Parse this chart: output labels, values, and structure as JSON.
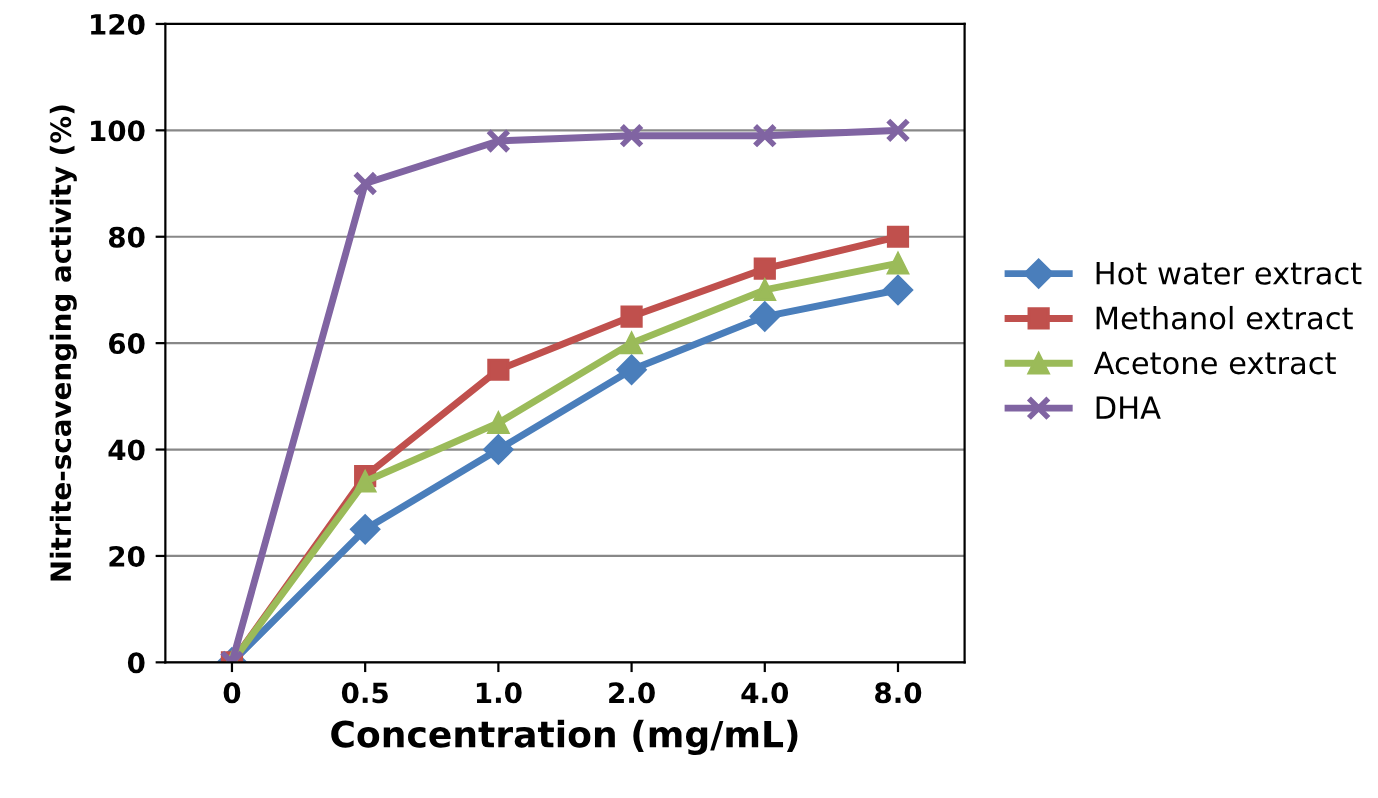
{
  "chart_data": {
    "type": "line",
    "xlabel": "Concentration (mg/mL)",
    "ylabel": "Nitrite-scavenging activity (%)",
    "categories": [
      "0",
      "0.5",
      "1.0",
      "2.0",
      "4.0",
      "8.0"
    ],
    "series": [
      {
        "name": "Hot water extract",
        "color": "#4a7ebb",
        "marker": "diamond",
        "values": [
          0,
          25,
          40,
          55,
          65,
          70
        ]
      },
      {
        "name": "Methanol extract",
        "color": "#c0504d",
        "marker": "square",
        "values": [
          0,
          35,
          55,
          65,
          74,
          80
        ]
      },
      {
        "name": "Acetone extract",
        "color": "#9bbb59",
        "marker": "triangle",
        "values": [
          0,
          34,
          45,
          60,
          70,
          75
        ]
      },
      {
        "name": "DHA",
        "color": "#8064a2",
        "marker": "cross",
        "values": [
          0,
          90,
          98,
          99,
          99,
          100
        ]
      }
    ],
    "ylim": [
      0,
      120
    ],
    "yticks": [
      0,
      20,
      40,
      60,
      80,
      100,
      120
    ],
    "grid": "y",
    "legend": "right",
    "line_style": "solid"
  }
}
